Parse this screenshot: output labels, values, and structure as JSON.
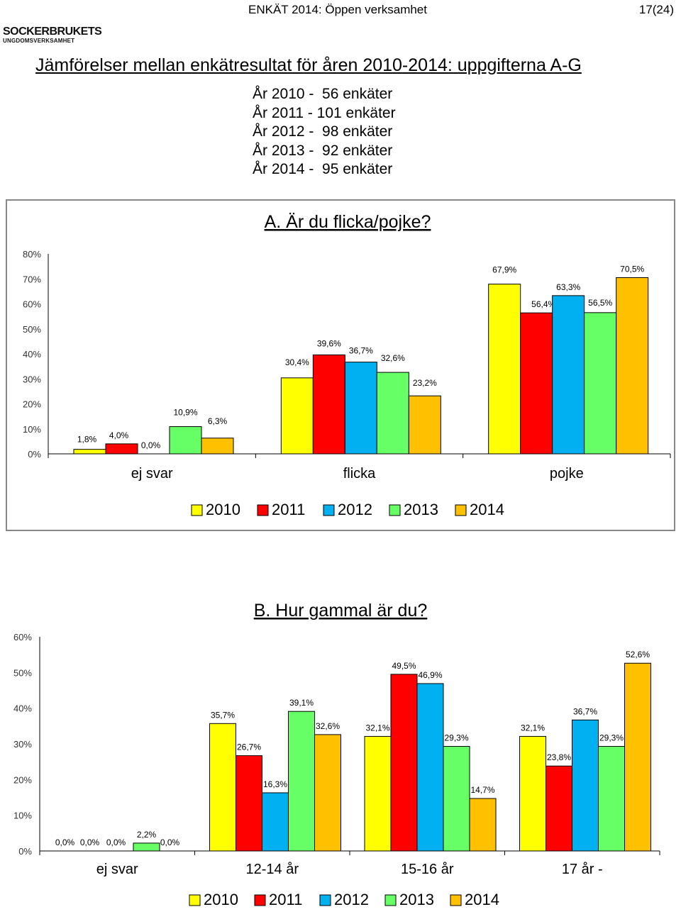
{
  "header": {
    "title": "ENKÄT 2014: Öppen verksamhet",
    "page": "17(24)"
  },
  "logo": {
    "name": "SOCKERBRUKETS",
    "sub": "UNGDOMSVERKSAMHET"
  },
  "main_title": "Jämförelser mellan enkätresultat för åren 2010-2014: uppgifterna A-G",
  "survey_counts": [
    "År 2010 -  56 enkäter",
    "År 2011 - 101 enkäter",
    "År 2012 -  98 enkäter",
    "År 2013 -  92 enkäter",
    "År 2014 -  95 enkäter"
  ],
  "colors": {
    "2010": "#ffff00",
    "2011": "#ff0000",
    "2012": "#00b0f0",
    "2013": "#66ff66",
    "2014": "#ffc000"
  },
  "chart_data": [
    {
      "type": "bar",
      "title": "A. Är du flicka/pojke?",
      "categories": [
        "ej svar",
        "flicka",
        "pojke"
      ],
      "series": [
        {
          "name": "2010",
          "values": [
            1.8,
            30.4,
            67.9
          ],
          "labels": [
            "1,8%",
            "30,4%",
            "67,9%"
          ]
        },
        {
          "name": "2011",
          "values": [
            4.0,
            39.6,
            56.4
          ],
          "labels": [
            "4,0%",
            "39,6%",
            "56,4%"
          ]
        },
        {
          "name": "2012",
          "values": [
            0.0,
            36.7,
            63.3
          ],
          "labels": [
            "0,0%",
            "36,7%",
            "63,3%"
          ]
        },
        {
          "name": "2013",
          "values": [
            10.9,
            32.6,
            56.5
          ],
          "labels": [
            "10,9%",
            "32,6%",
            "56,5%"
          ]
        },
        {
          "name": "2014",
          "values": [
            6.3,
            23.2,
            70.5
          ],
          "labels": [
            "6,3%",
            "23,2%",
            "70,5%"
          ]
        }
      ],
      "yticks": [
        "0%",
        "10%",
        "20%",
        "30%",
        "40%",
        "50%",
        "60%",
        "70%",
        "80%"
      ],
      "ylim": [
        0,
        80
      ],
      "legend": "bottom",
      "grid": false
    },
    {
      "type": "bar",
      "title": "B. Hur gammal är du?",
      "categories": [
        "ej svar",
        "12-14 år",
        "15-16 år",
        "17 år -"
      ],
      "series": [
        {
          "name": "2010",
          "values": [
            0.0,
            35.7,
            32.1,
            32.1
          ],
          "labels": [
            "0,0%",
            "35,7%",
            "32,1%",
            "32,1%"
          ]
        },
        {
          "name": "2011",
          "values": [
            0.0,
            26.7,
            49.5,
            23.8
          ],
          "labels": [
            "0,0%",
            "26,7%",
            "49,5%",
            "23,8%"
          ]
        },
        {
          "name": "2012",
          "values": [
            0.0,
            16.3,
            46.9,
            36.7
          ],
          "labels": [
            "0,0%",
            "16,3%",
            "46,9%",
            "36,7%"
          ]
        },
        {
          "name": "2013",
          "values": [
            2.2,
            39.1,
            29.3,
            29.3
          ],
          "labels": [
            "2,2%",
            "39,1%",
            "29,3%",
            "29,3%"
          ]
        },
        {
          "name": "2014",
          "values": [
            0.0,
            32.6,
            14.7,
            52.6
          ],
          "labels": [
            "0,0%",
            "32,6%",
            "14,7%",
            "52,6%"
          ]
        }
      ],
      "yticks": [
        "0%",
        "10%",
        "20%",
        "30%",
        "40%",
        "50%",
        "60%"
      ],
      "ylim": [
        0,
        60
      ],
      "legend": "bottom",
      "grid": false
    }
  ]
}
